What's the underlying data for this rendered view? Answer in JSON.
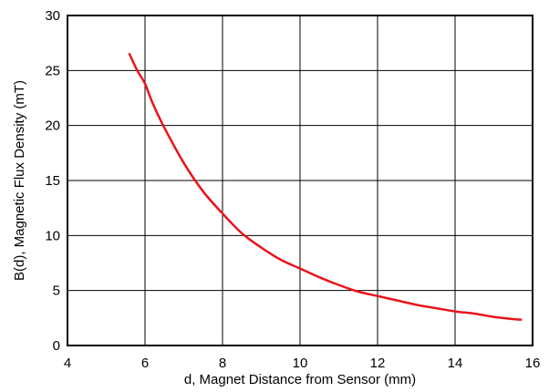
{
  "chart_data": {
    "type": "line",
    "title": "",
    "xlabel": "d, Magnet Distance from Sensor (mm)",
    "ylabel": "B(d), Magnetic Flux Density (mT)",
    "xlim": [
      4,
      16
    ],
    "ylim": [
      0,
      30
    ],
    "xticks": [
      4,
      6,
      8,
      10,
      12,
      14,
      16
    ],
    "yticks": [
      0,
      5,
      10,
      15,
      20,
      25,
      30
    ],
    "grid": true,
    "line_color": "#e8141c",
    "series": [
      {
        "x": [
          5.6,
          5.8,
          6.0,
          6.2,
          6.5,
          7.0,
          7.5,
          8.0,
          8.5,
          9.0,
          9.5,
          10.0,
          10.5,
          11.0,
          11.5,
          12.0,
          12.5,
          13.0,
          13.5,
          14.0,
          14.5,
          15.0,
          15.5,
          15.7
        ],
        "y": [
          26.5,
          25.0,
          23.8,
          22.0,
          19.8,
          16.6,
          14.0,
          12.0,
          10.2,
          8.9,
          7.8,
          7.0,
          6.2,
          5.5,
          4.9,
          4.5,
          4.1,
          3.7,
          3.4,
          3.1,
          2.9,
          2.6,
          2.4,
          2.35
        ]
      }
    ]
  }
}
